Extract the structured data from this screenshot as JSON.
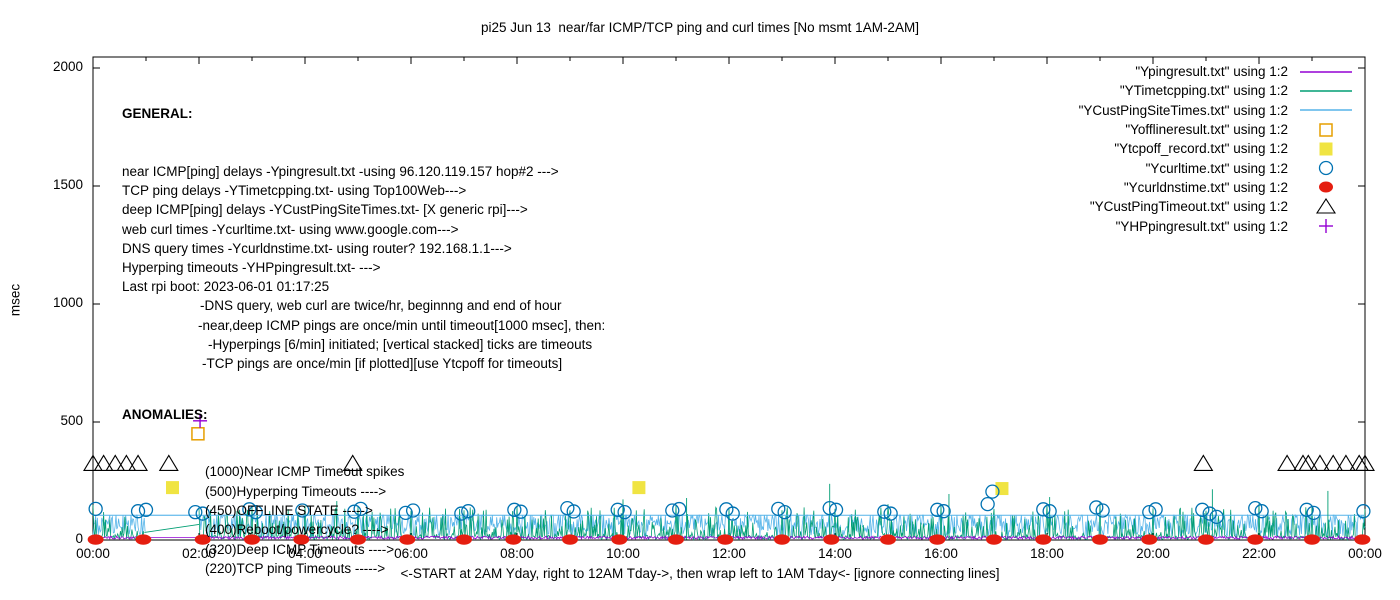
{
  "chart_data": {
    "type": "line+scatter",
    "title": "pi25 Jun 13  near/far ICMP/TCP ping and curl times [No msmt 1AM-2AM]",
    "ylabel": "msec",
    "xlabel": "<-START at 2AM Yday, right to 12AM Tday->, then wrap left to 1AM Tday<- [ignore connecting lines]",
    "ylim": [
      0,
      2000
    ],
    "yticks": [
      "0",
      "500",
      "1000",
      "1500",
      "2000"
    ],
    "ytick_values": [
      0,
      500,
      1000,
      1500,
      2000
    ],
    "xtick_labels": [
      "00:00",
      "02:00",
      "04:00",
      "06:00",
      "08:00",
      "10:00",
      "12:00",
      "14:00",
      "16:00",
      "18:00",
      "20:00",
      "22:00",
      "00:00"
    ],
    "xtick_hours": [
      0,
      2,
      4,
      6,
      8,
      10,
      12,
      14,
      16,
      18,
      20,
      22,
      24
    ],
    "x_range_hours": [
      0,
      24
    ],
    "grid": false,
    "legend_position": "top-right-inside",
    "gap_minutes": [
      60,
      120
    ],
    "noise_series": [
      {
        "key": "deep_icmp",
        "label": "\"YCustPingSiteTimes.txt\" using 1:2",
        "color": "#56b4e9",
        "style": "line",
        "base": 12,
        "amp": 88,
        "cap": 105,
        "cap_prob": 0.2,
        "desc": "deep ICMP ping, once/min, noisy 10-105 msec band capped at 105"
      },
      {
        "key": "tcp_ping",
        "label": "\"YTimetcpping.txt\" using 1:2",
        "color": "#009e73",
        "style": "line",
        "base": 2,
        "amp": 16,
        "spike_prob": 0.45,
        "spike_base": 15,
        "spike_amp": 125,
        "hourly_base": 122,
        "hourly_amp": 38,
        "desc": "TCP ping, once/min, grass spikes 0-160 msec"
      },
      {
        "key": "near_icmp",
        "label": "\"Ypingresult.txt\" using 1:2",
        "color": "#9400d3",
        "style": "line",
        "base": 4,
        "amp": 12,
        "desc": "near ICMP ping, once/min, flat 4-16 msec baseline"
      }
    ],
    "envelope": {
      "series": "deep_icmp",
      "msec": 105
    },
    "connectors": [
      {
        "color": "#009e73",
        "from": [
          0.97,
          32
        ],
        "to": [
          2.0,
          66
        ]
      },
      {
        "color": "#56b4e9",
        "from": [
          0.98,
          105
        ],
        "to": [
          2.0,
          105
        ]
      },
      {
        "color": "#9400d3",
        "from": [
          0.98,
          10
        ],
        "to": [
          2.0,
          10
        ]
      }
    ],
    "extra_spikes": [
      {
        "h": 4.6,
        "msec": 165
      },
      {
        "h": 10.0,
        "msec": 172
      },
      {
        "h": 11.2,
        "msec": 178
      },
      {
        "h": 13.9,
        "msec": 238
      },
      {
        "h": 16.15,
        "msec": 195
      },
      {
        "h": 18.05,
        "msec": 182
      },
      {
        "h": 21.12,
        "msec": 215
      },
      {
        "h": 23.3,
        "msec": 208
      }
    ],
    "point_series": [
      {
        "key": "offline",
        "label": "\"Yofflineresult.txt\" using 1:2",
        "color": "#e69f00",
        "marker": "open-square",
        "points": [
          [
            1.98,
            450
          ]
        ]
      },
      {
        "key": "tcpoff",
        "label": "\"Ytcpoff_record.txt\" using 1:2",
        "color": "#f0e442",
        "marker": "filled-square",
        "points": [
          [
            1.5,
            222
          ],
          [
            10.3,
            222
          ],
          [
            17.15,
            218
          ]
        ]
      },
      {
        "key": "curl",
        "label": "\"Ycurltime.txt\" using 1:2",
        "color": "#0072b2",
        "marker": "open-circle",
        "points": [
          [
            0.05,
            132
          ],
          [
            0.85,
            122
          ],
          [
            1.0,
            128
          ],
          [
            1.93,
            118
          ],
          [
            2.07,
            112
          ],
          [
            2.95,
            130
          ],
          [
            3.07,
            118
          ],
          [
            3.95,
            125
          ],
          [
            4.93,
            120
          ],
          [
            5.05,
            132
          ],
          [
            5.9,
            115
          ],
          [
            6.04,
            125
          ],
          [
            6.95,
            112
          ],
          [
            7.08,
            122
          ],
          [
            7.95,
            128
          ],
          [
            8.07,
            120
          ],
          [
            8.95,
            135
          ],
          [
            9.07,
            121
          ],
          [
            9.9,
            128
          ],
          [
            10.03,
            118
          ],
          [
            10.93,
            125
          ],
          [
            11.06,
            131
          ],
          [
            11.95,
            130
          ],
          [
            12.07,
            112
          ],
          [
            12.93,
            132
          ],
          [
            13.05,
            118
          ],
          [
            13.9,
            135
          ],
          [
            14.02,
            128
          ],
          [
            14.93,
            120
          ],
          [
            15.05,
            112
          ],
          [
            15.93,
            128
          ],
          [
            16.05,
            122
          ],
          [
            16.88,
            152
          ],
          [
            16.97,
            205
          ],
          [
            17.93,
            130
          ],
          [
            18.05,
            122
          ],
          [
            18.93,
            138
          ],
          [
            19.05,
            125
          ],
          [
            19.93,
            118
          ],
          [
            20.05,
            130
          ],
          [
            20.93,
            128
          ],
          [
            21.07,
            112
          ],
          [
            21.2,
            98
          ],
          [
            21.93,
            135
          ],
          [
            22.05,
            122
          ],
          [
            22.9,
            128
          ],
          [
            23.03,
            115
          ],
          [
            23.97,
            122
          ]
        ]
      },
      {
        "key": "dns",
        "label": "\"Ycurldnstime.txt\" using 1:2",
        "color": "#e51e10",
        "marker": "filled-wide-circle",
        "points": [
          [
            0.05,
            2
          ],
          [
            0.95,
            2
          ],
          [
            2.07,
            2
          ],
          [
            3.0,
            2
          ],
          [
            3.93,
            2
          ],
          [
            5.0,
            2
          ],
          [
            5.93,
            2
          ],
          [
            7.0,
            2
          ],
          [
            7.93,
            2
          ],
          [
            9.0,
            2
          ],
          [
            9.93,
            2
          ],
          [
            11.0,
            2
          ],
          [
            11.93,
            2
          ],
          [
            13.0,
            2
          ],
          [
            13.93,
            2
          ],
          [
            15.0,
            2
          ],
          [
            15.93,
            2
          ],
          [
            17.0,
            2
          ],
          [
            17.93,
            2
          ],
          [
            19.0,
            2
          ],
          [
            19.93,
            2
          ],
          [
            21.0,
            2
          ],
          [
            21.93,
            2
          ],
          [
            23.0,
            2
          ],
          [
            23.95,
            2
          ]
        ]
      },
      {
        "key": "deep_timeout",
        "label": "\"YCustPingTimeout.txt\" using 1:2",
        "color": "#000000",
        "marker": "open-triangle",
        "points": [
          [
            0.0,
            320
          ],
          [
            0.2,
            320
          ],
          [
            0.42,
            320
          ],
          [
            0.63,
            320
          ],
          [
            0.85,
            320
          ],
          [
            1.43,
            320
          ],
          [
            4.9,
            320
          ],
          [
            20.95,
            320
          ],
          [
            22.53,
            320
          ],
          [
            22.83,
            320
          ],
          [
            22.93,
            320
          ],
          [
            23.15,
            320
          ],
          [
            23.4,
            320
          ],
          [
            23.64,
            320
          ],
          [
            23.89,
            320
          ],
          [
            24.0,
            320
          ]
        ]
      },
      {
        "key": "hp_timeout",
        "label": "\"YHPpingresult.txt\" using 1:2",
        "color": "#9400d3",
        "marker": "plus",
        "points": [
          [
            2.02,
            505
          ]
        ]
      }
    ]
  },
  "annotations": {
    "general": {
      "heading": "GENERAL:",
      "lines": [
        {
          "text": "near ICMP[ping] delays -Ypingresult.txt -using 96.120.119.157 hop#2 --->",
          "indent": 0
        },
        {
          "text": "TCP ping delays -YTimetcpping.txt- using Top100Web--->",
          "indent": 0
        },
        {
          "text": "deep ICMP[ping] delays -YCustPingSiteTimes.txt- [X generic rpi]--->",
          "indent": 0
        },
        {
          "text": "web curl times -Ycurltime.txt- using www.google.com--->",
          "indent": 0
        },
        {
          "text": "DNS query times -Ycurldnstime.txt- using router? 192.168.1.1--->",
          "indent": 0
        },
        {
          "text": "Hyperping timeouts -YHPpingresult.txt- --->",
          "indent": 0
        },
        {
          "text": "Last rpi boot: 2023-06-01 01:17:25",
          "indent": 0
        },
        {
          "text": "-DNS query, web curl are twice/hr, beginnng and end of hour",
          "indent": 78
        },
        {
          "text": "-near,deep ICMP pings are once/min until timeout[1000 msec], then:",
          "indent": 76
        },
        {
          "text": "-Hyperpings [6/min] initiated; [vertical stacked] ticks are timeouts",
          "indent": 86
        },
        {
          "text": "-TCP pings are once/min [if plotted][use Ytcpoff for timeouts]",
          "indent": 80
        }
      ]
    },
    "anomalies": {
      "heading": "ANOMALIES:",
      "lines": [
        {
          "text": "(1000)Near ICMP Timeout spikes",
          "indent": 83
        },
        {
          "text": "(500)Hyperping Timeouts ---->",
          "indent": 83
        },
        {
          "text": "(450)OFFLINE STATE ----->",
          "indent": 83
        },
        {
          "text": "(400)Reboot/powercycle? ---->",
          "indent": 83
        },
        {
          "text": "(320)Deep ICMP Timeouts ---->",
          "indent": 83
        },
        {
          "text": "(220)TCP ping Timeouts ----->",
          "indent": 83
        }
      ]
    }
  },
  "legend": {
    "items": [
      {
        "label": "\"Ypingresult.txt\" using 1:2",
        "sample": "line",
        "color": "#9400d3"
      },
      {
        "label": "\"YTimetcpping.txt\" using 1:2",
        "sample": "line",
        "color": "#009e73"
      },
      {
        "label": "\"YCustPingSiteTimes.txt\" using 1:2",
        "sample": "line",
        "color": "#56b4e9"
      },
      {
        "label": "\"Yofflineresult.txt\" using 1:2",
        "sample": "open-square",
        "color": "#e69f00"
      },
      {
        "label": "\"Ytcpoff_record.txt\" using 1:2",
        "sample": "filled-square",
        "color": "#f0e442"
      },
      {
        "label": "\"Ycurltime.txt\" using 1:2",
        "sample": "open-circle",
        "color": "#0072b2"
      },
      {
        "label": "\"Ycurldnstime.txt\" using 1:2",
        "sample": "filled-wide-circle",
        "color": "#e51e10"
      },
      {
        "label": "\"YCustPingTimeout.txt\" using 1:2",
        "sample": "open-triangle",
        "color": "#000000"
      },
      {
        "label": "\"YHPpingresult.txt\" using 1:2",
        "sample": "plus",
        "color": "#9400d3"
      }
    ]
  }
}
